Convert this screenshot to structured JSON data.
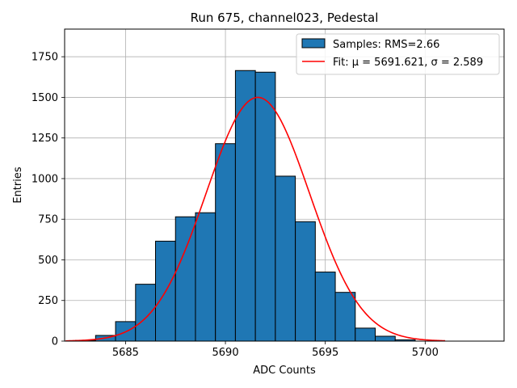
{
  "chart_data": {
    "type": "bar",
    "title": "Run 675, channel023, Pedestal",
    "xlabel": "ADC Counts",
    "ylabel": "Entries",
    "xlim": [
      5681.95,
      5703.95
    ],
    "ylim": [
      0,
      1920
    ],
    "x_ticks": [
      5685,
      5690,
      5695,
      5700
    ],
    "y_ticks": [
      0,
      250,
      500,
      750,
      1000,
      1250,
      1500,
      1750
    ],
    "grid": true,
    "legend_position": "top-right",
    "bar_color": "#1f77b4",
    "fit_color": "#ff0000",
    "bin_width": 1,
    "bins": [
      {
        "x": 5683,
        "value": 5
      },
      {
        "x": 5684,
        "value": 35
      },
      {
        "x": 5685,
        "value": 120
      },
      {
        "x": 5686,
        "value": 350
      },
      {
        "x": 5687,
        "value": 615
      },
      {
        "x": 5688,
        "value": 765
      },
      {
        "x": 5689,
        "value": 790
      },
      {
        "x": 5690,
        "value": 1215
      },
      {
        "x": 5691,
        "value": 1665
      },
      {
        "x": 5692,
        "value": 1655
      },
      {
        "x": 5693,
        "value": 1015
      },
      {
        "x": 5694,
        "value": 735
      },
      {
        "x": 5695,
        "value": 425
      },
      {
        "x": 5696,
        "value": 300
      },
      {
        "x": 5697,
        "value": 80
      },
      {
        "x": 5698,
        "value": 30
      },
      {
        "x": 5699,
        "value": 8
      }
    ],
    "series": [
      {
        "name": "Samples: RMS=2.66",
        "kind": "histogram"
      },
      {
        "name": "Fit: μ = 5691.621, σ = 2.589",
        "kind": "line",
        "mu": 5691.621,
        "sigma": 2.589,
        "amplitude": 1500,
        "x_range": [
          5682,
          5701
        ]
      }
    ]
  }
}
